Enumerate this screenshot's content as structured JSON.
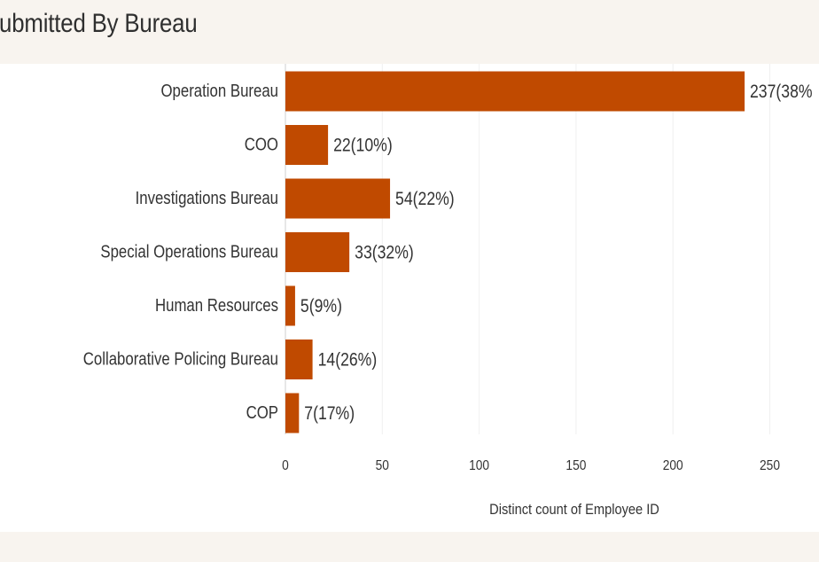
{
  "chart_data": {
    "type": "bar",
    "orientation": "horizontal",
    "title": "Submitted By Bureau",
    "xlabel": "Distinct count of Employee ID",
    "ylabel": "",
    "xlim": [
      0,
      260
    ],
    "x_ticks": [
      "0",
      "50",
      "100",
      "150",
      "200",
      "250"
    ],
    "categories": [
      "Operation Bureau",
      "COO",
      "Investigations Bureau",
      "Special Operations Bureau",
      "Human Resources",
      "Collaborative Policing Bureau",
      "COP"
    ],
    "values": [
      237,
      22,
      54,
      33,
      5,
      14,
      7
    ],
    "data_labels": [
      "237(38%",
      "22(10%)",
      "54(22%)",
      "33(32%)",
      "5(9%)",
      "14(26%)",
      "7(17%)"
    ],
    "grid": true,
    "legend": "none",
    "colors": {
      "bar": "#c04a00",
      "text": "#333333",
      "background": "#ffffff",
      "page_background": "#f8f4ef"
    }
  }
}
